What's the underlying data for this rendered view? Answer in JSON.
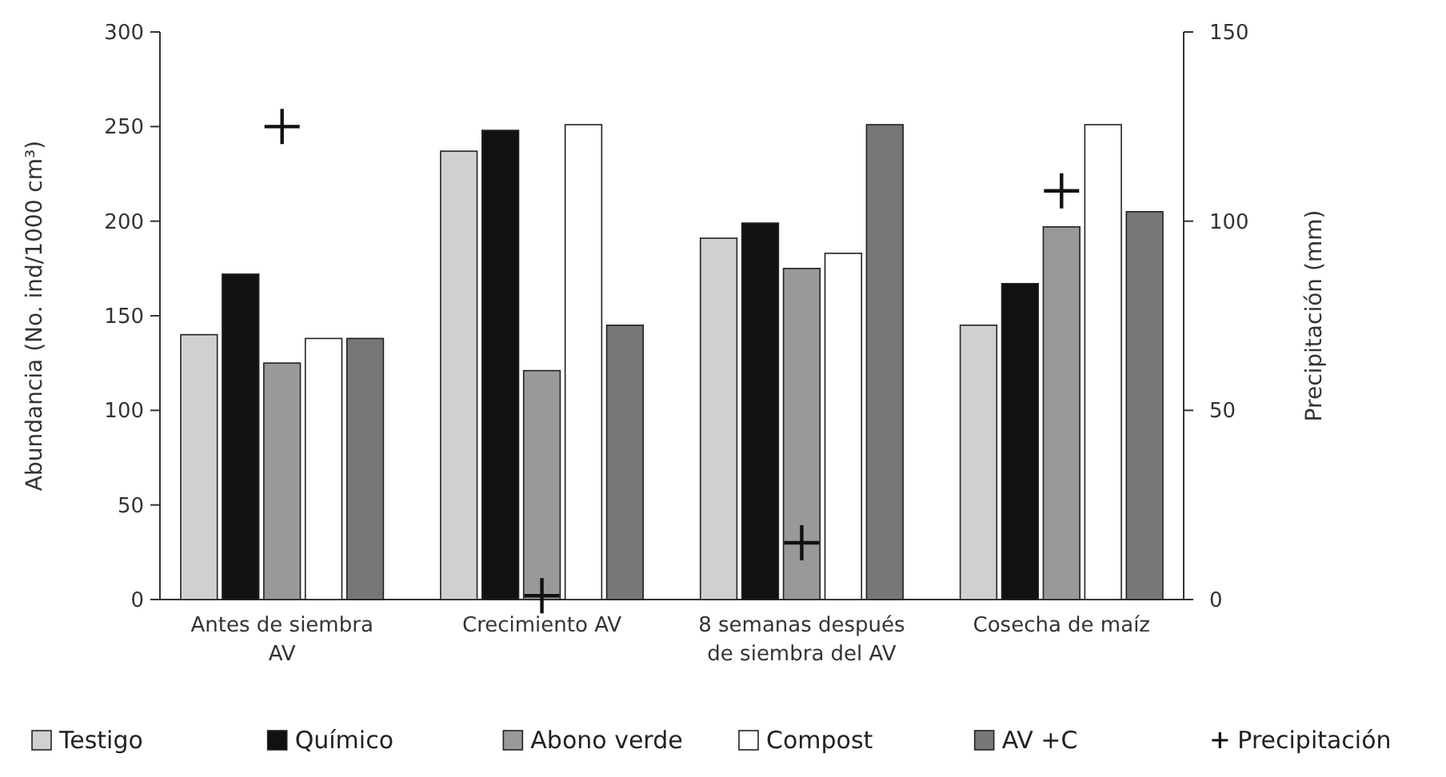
{
  "chart_data": {
    "type": "bar",
    "ylabel": "Abundancia (No. ind/1000 cm³)",
    "y2label": "Precipitación (mm)",
    "categories": [
      "Antes de siembra AV",
      "Crecimiento  AV",
      "8 semanas después de siembra del AV",
      "Cosecha de maíz"
    ],
    "ylim": [
      0,
      300
    ],
    "yticks": [
      0,
      50,
      100,
      150,
      200,
      250,
      300
    ],
    "y2lim": [
      0,
      150
    ],
    "y2ticks": [
      0,
      50,
      100,
      150
    ],
    "grid": false,
    "legend": "bottom",
    "series": [
      {
        "name": "Testigo",
        "color": "#d0d0d0",
        "values": [
          140,
          237,
          191,
          145
        ]
      },
      {
        "name": "Químico",
        "color": "#111111",
        "values": [
          172,
          248,
          199,
          167
        ]
      },
      {
        "name": "Abono verde",
        "color": "#999999",
        "values": [
          125,
          121,
          175,
          197
        ]
      },
      {
        "name": "Compost",
        "color": "#ffffff",
        "values": [
          138,
          251,
          183,
          251
        ]
      },
      {
        "name": "AV +C",
        "color": "#777777",
        "values": [
          138,
          145,
          251,
          205
        ]
      },
      {
        "name": "Precipitación",
        "type": "scatter",
        "axis": "y2",
        "marker": "cross",
        "color": "#111111",
        "values": [
          125,
          1,
          15,
          108
        ]
      }
    ]
  }
}
